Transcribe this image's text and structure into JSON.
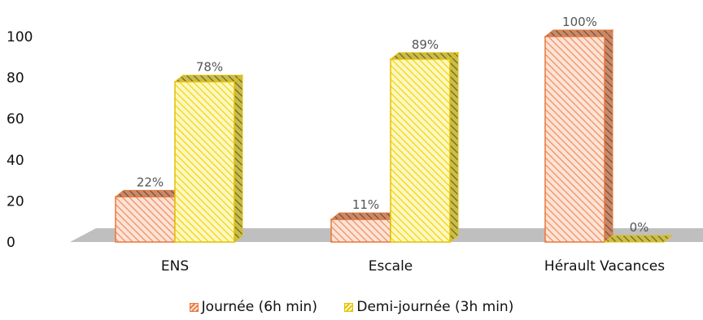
{
  "chart_data": {
    "type": "bar",
    "categories": [
      "ENS",
      "Escale",
      "Hérault Vacances"
    ],
    "series": [
      {
        "name": "Journée (6h min)",
        "values": [
          22,
          11,
          100
        ],
        "labels": [
          "22%",
          "11%",
          "100%"
        ],
        "color": "#f4a382",
        "stroke": "#e8783a"
      },
      {
        "name": "Demi-journée (3h min)",
        "values": [
          78,
          89,
          0
        ],
        "labels": [
          "78%",
          "89%",
          "0%"
        ],
        "color": "#f8ee7a",
        "stroke": "#e6c000"
      }
    ],
    "yticks": [
      "0",
      "20",
      "40",
      "60",
      "80",
      "100"
    ],
    "ylim": [
      0,
      100
    ],
    "legend_position": "bottom",
    "grid": false,
    "floor_color": "#bfbfbf"
  }
}
